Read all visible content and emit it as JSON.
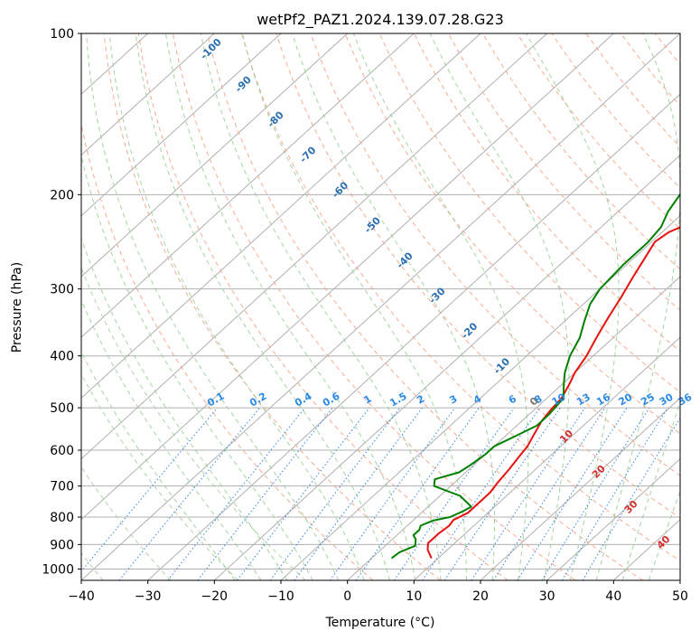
{
  "chart_data": {
    "type": "line",
    "title": "wetPf2_PAZ1.2024.139.07.28.G23",
    "xlabel": "Temperature (°C)",
    "ylabel": "Pressure (hPa)",
    "xlim": [
      -40,
      50
    ],
    "ylim": [
      1050,
      100
    ],
    "y_scale": "log",
    "grid": true,
    "x_ticks": [
      "−40",
      "−30",
      "−20",
      "−10",
      "0",
      "10",
      "20",
      "30",
      "40",
      "50"
    ],
    "y_ticks": [
      {
        "p": 100,
        "label": "100"
      },
      {
        "p": 200,
        "label": "200"
      },
      {
        "p": 300,
        "label": "300"
      },
      {
        "p": 400,
        "label": "400"
      },
      {
        "p": 500,
        "label": "500"
      },
      {
        "p": 600,
        "label": "600"
      },
      {
        "p": 700,
        "label": "700"
      },
      {
        "p": 800,
        "label": "800"
      },
      {
        "p": 900,
        "label": "900"
      },
      {
        "p": 1000,
        "label": "1000"
      }
    ],
    "series": [
      {
        "color": "#e8100f",
        "points": [
          [
            9.0,
            955
          ],
          [
            7.0,
            920
          ],
          [
            6.0,
            895
          ],
          [
            6.0,
            860
          ],
          [
            6.3,
            830
          ],
          [
            6.0,
            810
          ],
          [
            7.0,
            785
          ],
          [
            7.0,
            760
          ],
          [
            7.0,
            720
          ],
          [
            6.5,
            690
          ],
          [
            6.0,
            650
          ],
          [
            5.5,
            620
          ],
          [
            5.0,
            590
          ],
          [
            4.0,
            560
          ],
          [
            3.0,
            530
          ],
          [
            2.5,
            505
          ],
          [
            2.2,
            480
          ],
          [
            1.0,
            450
          ],
          [
            0.0,
            430
          ],
          [
            -1.0,
            400
          ],
          [
            -2.5,
            370
          ],
          [
            -4.0,
            340
          ],
          [
            -5.5,
            310
          ],
          [
            -7.0,
            285
          ],
          [
            -8.5,
            260
          ],
          [
            -9.5,
            245
          ],
          [
            -9.0,
            235
          ],
          [
            -6.5,
            222
          ],
          [
            -4.0,
            212
          ],
          [
            -2.0,
            202
          ],
          [
            0.5,
            190
          ],
          [
            4.0,
            176
          ],
          [
            8.5,
            163
          ],
          [
            13.5,
            152
          ],
          [
            14.0,
            144
          ],
          [
            16.5,
            134
          ],
          [
            21.0,
            121
          ],
          [
            25.0,
            111
          ],
          [
            28.0,
            100
          ]
        ]
      },
      {
        "color": "#008000",
        "points": [
          [
            3.0,
            955
          ],
          [
            3.2,
            930
          ],
          [
            4.5,
            905
          ],
          [
            3.5,
            880
          ],
          [
            2.5,
            865
          ],
          [
            2.5,
            845
          ],
          [
            2.0,
            830
          ],
          [
            3.0,
            812
          ],
          [
            5.0,
            800
          ],
          [
            6.0,
            780
          ],
          [
            6.5,
            765
          ],
          [
            3.0,
            730
          ],
          [
            -2.5,
            700
          ],
          [
            -3.5,
            680
          ],
          [
            -1.0,
            660
          ],
          [
            -0.5,
            640
          ],
          [
            0.0,
            610
          ],
          [
            0.0,
            590
          ],
          [
            1.5,
            565
          ],
          [
            3.0,
            540
          ],
          [
            3.0,
            515
          ],
          [
            2.5,
            480
          ],
          [
            0.5,
            455
          ],
          [
            -1.5,
            430
          ],
          [
            -3.5,
            400
          ],
          [
            -5.0,
            370
          ],
          [
            -7.0,
            345
          ],
          [
            -9.0,
            320
          ],
          [
            -10.0,
            300
          ],
          [
            -10.5,
            270
          ],
          [
            -10.5,
            245
          ],
          [
            -11.0,
            230
          ],
          [
            -12.5,
            215
          ],
          [
            -13.5,
            200
          ],
          [
            -11.5,
            188
          ],
          [
            -8.0,
            178
          ],
          [
            -10.0,
            168
          ],
          [
            -14.0,
            160
          ],
          [
            -16.5,
            154
          ],
          [
            -15.0,
            146
          ],
          [
            -9.5,
            138
          ],
          [
            -6.5,
            128
          ],
          [
            -4.5,
            117
          ],
          [
            -2.5,
            108
          ],
          [
            -1.0,
            100
          ]
        ]
      }
    ],
    "dry_adiabat_labels": [
      "-100",
      "-90",
      "-80",
      "-70",
      "-60",
      "-50",
      "-40",
      "-30",
      "-20",
      "-10",
      "0",
      "10",
      "20",
      "30",
      "40"
    ],
    "mixing_ratio_labels": [
      "0.1",
      "0.2",
      "0.4",
      "0.6",
      "1",
      "1.5",
      "2",
      "3",
      "4",
      "6",
      "8",
      "10",
      "13",
      "16",
      "20",
      "25",
      "30",
      "36"
    ]
  }
}
